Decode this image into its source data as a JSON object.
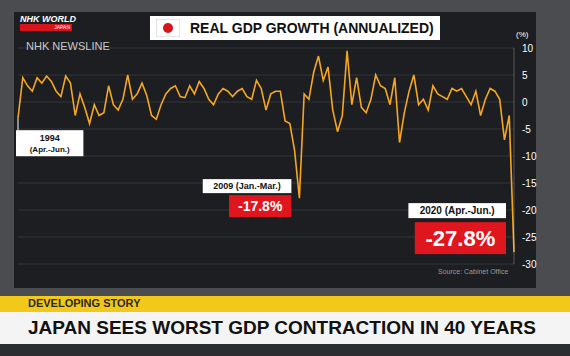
{
  "channel": {
    "logo": "NHK WORLD",
    "logo_sub": "JAPAN",
    "program": "NHK NEWSLINE"
  },
  "banner": {
    "tag": "DEVELOPING STORY",
    "headline": "JAPAN SEES WORST GDP CONTRACTION IN 40 YEARS"
  },
  "chart_data": {
    "type": "line",
    "title": "REAL GDP GROWTH (ANNUALIZED)",
    "ylabel": "(%)",
    "source": "Source: Cabinet Office",
    "color": "#f5a623",
    "grid": true,
    "tick_labels": "y",
    "ylim": [
      -30,
      10
    ],
    "yticks": [
      10,
      5,
      0,
      -5,
      -10,
      -15,
      -20,
      -25,
      -30
    ],
    "categories": [
      null,
      null,
      null,
      null,
      null,
      null,
      null,
      null,
      null,
      null,
      null,
      null,
      null,
      null,
      null,
      null,
      null,
      null,
      null,
      null,
      null,
      null,
      null,
      null,
      null,
      null,
      null,
      null,
      null,
      null,
      null,
      null,
      null,
      null,
      null,
      null,
      null,
      null,
      null,
      null,
      null,
      null,
      null,
      null,
      null,
      null,
      null,
      null,
      null,
      null,
      null,
      null,
      null,
      null,
      null,
      null,
      null,
      null,
      null,
      null,
      null,
      null,
      null,
      null,
      null,
      null,
      null,
      null,
      null,
      null,
      null,
      null,
      null,
      null,
      null,
      null,
      null,
      null,
      null,
      null,
      null,
      null,
      null,
      null,
      null,
      null,
      null,
      null,
      null,
      null,
      null,
      null,
      null,
      null,
      null,
      null,
      null,
      null,
      null,
      null,
      null,
      null,
      null,
      null,
      null
    ],
    "values": [
      -3,
      4.5,
      3.0,
      2.0,
      4.5,
      3.5,
      4.8,
      3.8,
      2.0,
      1.0,
      4.8,
      3.5,
      -2.5,
      1.5,
      -1.0,
      -4.0,
      -0.5,
      -2.5,
      -2.0,
      3.0,
      -0.5,
      -1.5,
      0.5,
      5.0,
      0.5,
      1.5,
      3.5,
      1.2,
      -2.5,
      -3.2,
      -0.5,
      1.5,
      2.5,
      3.0,
      1.0,
      0.8,
      3.0,
      1.5,
      3.8,
      2.5,
      0.5,
      -0.5,
      1.5,
      2.5,
      2.0,
      1.0,
      2.0,
      2.5,
      1.0,
      0.5,
      4.0,
      2.5,
      -1.5,
      1.5,
      2.0,
      2.0,
      -3.5,
      -4.0,
      -9.0,
      -17.8,
      1.5,
      0.5,
      5.5,
      8.5,
      4.0,
      6.5,
      -1.5,
      -5.5,
      -2.5,
      9.5,
      -0.5,
      4.5,
      -1.0,
      -2.0,
      0.5,
      5.0,
      3.0,
      2.5,
      -0.5,
      4.5,
      -7.5,
      -2.0,
      2.0,
      5.0,
      -0.5,
      0.5,
      -1.5,
      3.0,
      1.5,
      1.0,
      0.5,
      2.5,
      2.0,
      2.5,
      1.0,
      -0.5,
      2.0,
      -2.5,
      0.5,
      2.5,
      2.0,
      0.5,
      -7.0,
      -2.5,
      -27.8
    ],
    "annotations": [
      {
        "text": "1994 (Apr.-Jun.)",
        "value": -3
      },
      {
        "text": "2009 (Jan.-Mar.)",
        "value": -17.8,
        "label": "-17.8%"
      },
      {
        "text": "2020 (Apr.-Jun.)",
        "value": -27.8,
        "label": "-27.8%"
      }
    ]
  }
}
